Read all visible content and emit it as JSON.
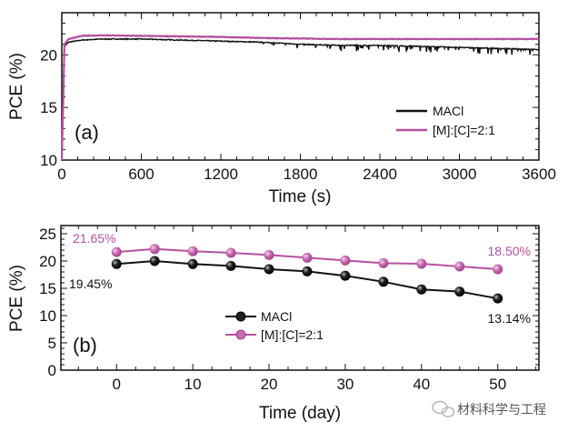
{
  "colors": {
    "MACl": "#111111",
    "[M]:[C]=2:1": "#b5509f"
  },
  "watermark": {
    "text": "材料科学与工程",
    "icon": "wechat-icon"
  },
  "chart_data": [
    {
      "type": "line",
      "panel_label": "(a)",
      "xlabel": "Time (s)",
      "ylabel": "PCE (%)",
      "xlim": [
        0,
        3600
      ],
      "ylim": [
        10,
        24
      ],
      "xticks": [
        0,
        600,
        1200,
        1800,
        2400,
        3000,
        3600
      ],
      "yticks": [
        10,
        15,
        20
      ],
      "legend": "right",
      "series": [
        {
          "name": "MACl",
          "x": [
            0,
            20,
            50,
            150,
            300,
            600,
            900,
            1200,
            1500,
            1800,
            2100,
            2400,
            2700,
            3000,
            3300,
            3600
          ],
          "y": [
            10,
            20.8,
            21.2,
            21.4,
            21.5,
            21.5,
            21.4,
            21.3,
            21.2,
            21.0,
            20.9,
            20.9,
            20.8,
            20.7,
            20.6,
            20.5
          ]
        },
        {
          "name": "[M]:[C]=2:1",
          "x": [
            0,
            20,
            50,
            150,
            300,
            600,
            900,
            1200,
            1500,
            1800,
            2100,
            2400,
            2700,
            3000,
            3300,
            3600
          ],
          "y": [
            10,
            21.0,
            21.5,
            21.8,
            21.85,
            21.8,
            21.75,
            21.7,
            21.6,
            21.55,
            21.5,
            21.5,
            21.5,
            21.5,
            21.5,
            21.5
          ]
        }
      ]
    },
    {
      "type": "line",
      "panel_label": "(b)",
      "xlabel": "Time (day)",
      "ylabel": "PCE (%)",
      "xlim": [
        -7.3,
        55.4
      ],
      "ylim": [
        0,
        26.5
      ],
      "xticks": [
        0,
        10,
        20,
        30,
        40,
        50
      ],
      "yticks": [
        0,
        5,
        10,
        15,
        20,
        25
      ],
      "legend": "center",
      "x": [
        0,
        5,
        10,
        15,
        20,
        25,
        30,
        35,
        40,
        45,
        50
      ],
      "series": [
        {
          "name": "MACl",
          "values": [
            19.45,
            20.0,
            19.45,
            19.1,
            18.5,
            18.1,
            17.3,
            16.2,
            14.8,
            14.4,
            13.14
          ]
        },
        {
          "name": "[M]:[C]=2:1",
          "values": [
            21.65,
            22.2,
            21.8,
            21.5,
            21.1,
            20.6,
            20.1,
            19.6,
            19.5,
            19.0,
            18.5
          ]
        }
      ],
      "annotations": [
        {
          "text": "21.65%",
          "series": "[M]:[C]=2:1"
        },
        {
          "text": "18.50%",
          "series": "[M]:[C]=2:1"
        },
        {
          "text": "19.45%",
          "series": "MACl"
        },
        {
          "text": "13.14%",
          "series": "MACl"
        }
      ]
    }
  ]
}
